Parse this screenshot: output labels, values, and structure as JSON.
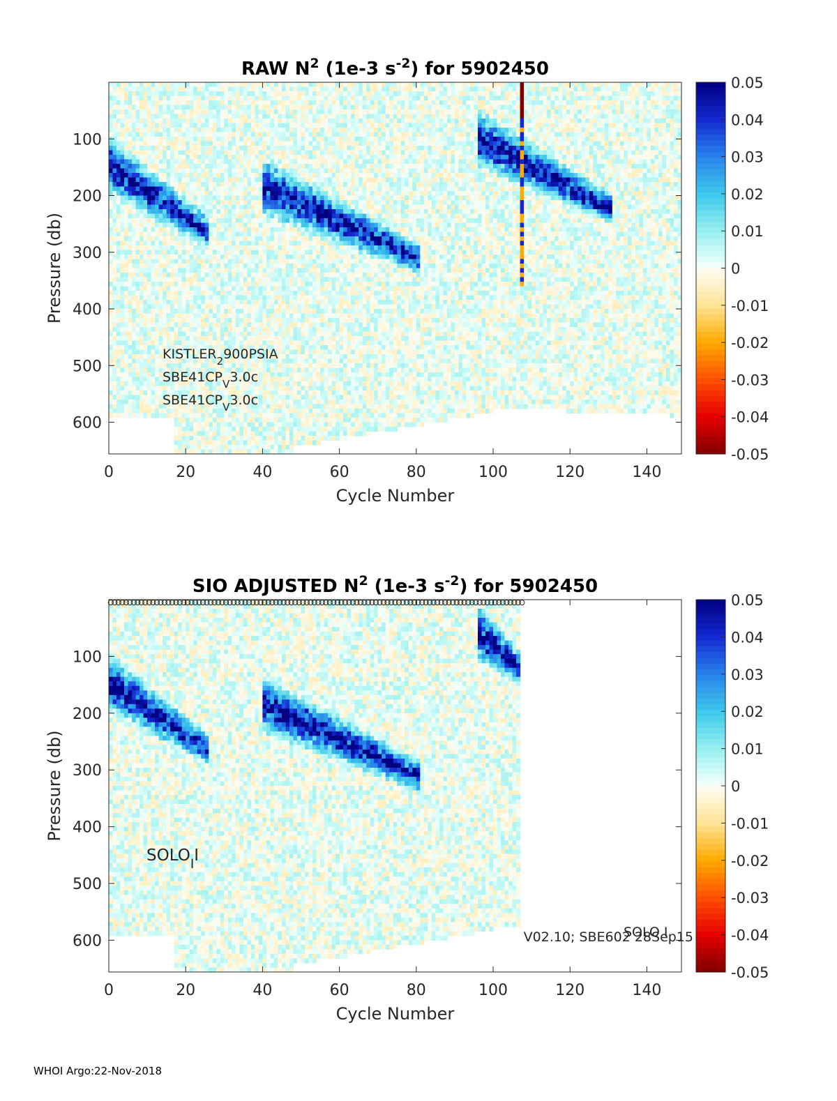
{
  "footer": "WHOI Argo:22-Nov-2018",
  "chart_data": [
    {
      "type": "heatmap",
      "title_parts": [
        "RAW N",
        "2",
        " (1e-3 s",
        "-2",
        ") for 5902450"
      ],
      "xlabel": "Cycle Number",
      "ylabel": "Pressure (db)",
      "xlim": [
        0,
        149
      ],
      "ylim": [
        656,
        0
      ],
      "y_reversed": true,
      "xticks": [
        0,
        20,
        40,
        60,
        80,
        100,
        120,
        140
      ],
      "yticks": [
        100,
        200,
        300,
        400,
        500,
        600
      ],
      "colorbar": {
        "limits": [
          -0.05,
          0.05
        ],
        "ticks": [
          "0.05",
          "0.04",
          "0.03",
          "0.02",
          "0.01",
          "0",
          "-0.01",
          "-0.02",
          "-0.03",
          "-0.04",
          "-0.05"
        ],
        "colormap": "jet-like diverging, dark blue (0.05) to white (0) to dark red (-0.05)"
      },
      "data_extent_cycles": 149,
      "annotations": [
        {
          "parts": [
            "KISTLER",
            "2",
            "900PSIA"
          ],
          "sub_index": 1
        },
        {
          "parts": [
            "SBE41CP",
            "V",
            "3.0c"
          ],
          "sub_index": 1
        },
        {
          "parts": [
            "SBE41CP",
            "V",
            "3.0c"
          ],
          "sub_index": 1
        }
      ],
      "approx_features": {
        "bottom_pressure_db": "about 580 to 650",
        "strong_stratification_bands": [
          {
            "cycles": [
              0,
              25
            ],
            "pressure_db": [
              70,
              280
            ]
          },
          {
            "cycles": [
              40,
              80
            ],
            "pressure_db": [
              100,
              330
            ]
          },
          {
            "cycles": [
              96,
              130
            ],
            "pressure_db": [
              20,
              240
            ]
          }
        ],
        "negative_spike": {
          "cycle": 107,
          "pressure_db": [
            0,
            60
          ],
          "value": -0.05
        }
      }
    },
    {
      "type": "heatmap",
      "title_parts": [
        "SIO  ADJUSTED N",
        "2",
        " (1e-3 s",
        "-2",
        ") for 5902450"
      ],
      "xlabel": "Cycle Number",
      "ylabel": "Pressure (db)",
      "xlim": [
        0,
        149
      ],
      "ylim": [
        656,
        0
      ],
      "y_reversed": true,
      "xticks": [
        0,
        20,
        40,
        60,
        80,
        100,
        120,
        140
      ],
      "yticks": [
        100,
        200,
        300,
        400,
        500,
        600
      ],
      "colorbar": {
        "limits": [
          -0.05,
          0.05
        ],
        "ticks": [
          "0.05",
          "0.04",
          "0.03",
          "0.02",
          "0.01",
          "0",
          "-0.01",
          "-0.02",
          "-0.03",
          "-0.04",
          "-0.05"
        ],
        "colormap": "jet-like diverging, dark blue (0.05) to white (0) to dark red (-0.05)"
      },
      "data_extent_cycles": 107,
      "qc_marker_row": {
        "symbol": "circle",
        "pressure_db": 5,
        "cycles": [
          0,
          107
        ]
      },
      "annotations": [
        {
          "parts": [
            "SOLO",
            "I",
            "I"
          ],
          "sub_index": 1
        }
      ],
      "corner_text": "V02.10; SBE602 28Sep15",
      "corner_overlay": "SOLO I",
      "approx_features": {
        "bottom_pressure_db": "about 570 to 650",
        "strong_stratification_bands": [
          {
            "cycles": [
              0,
              25
            ],
            "pressure_db": [
              70,
              280
            ]
          },
          {
            "cycles": [
              40,
              80
            ],
            "pressure_db": [
              100,
              330
            ]
          },
          {
            "cycles": [
              96,
              107
            ],
            "pressure_db": [
              20,
              130
            ]
          }
        ]
      }
    }
  ]
}
